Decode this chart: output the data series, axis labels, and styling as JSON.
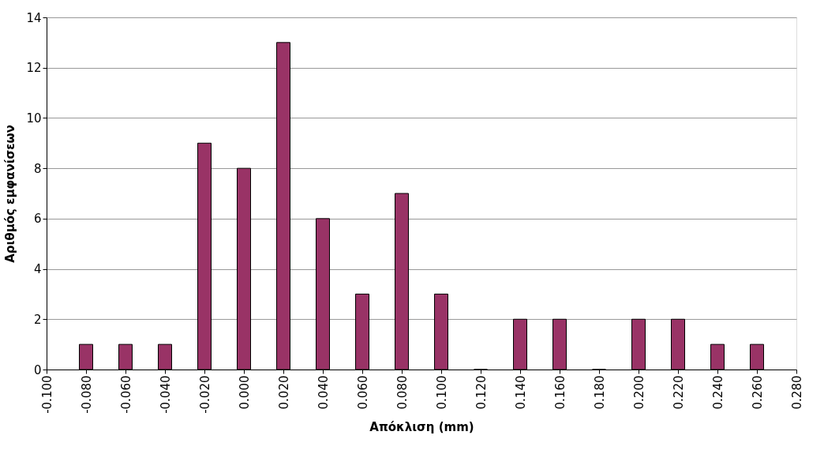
{
  "chart_data": {
    "type": "bar",
    "xlabel": "Απόκλιση (mm)",
    "ylabel": "Αριθμός εμφανίσεων",
    "x": [
      -0.08,
      -0.06,
      -0.04,
      -0.02,
      0.0,
      0.02,
      0.04,
      0.06,
      0.08,
      0.1,
      0.12,
      0.14,
      0.16,
      0.18,
      0.2,
      0.22,
      0.24,
      0.26
    ],
    "values": [
      1,
      1,
      1,
      9,
      8,
      13,
      6,
      3,
      7,
      3,
      0,
      2,
      2,
      0,
      2,
      2,
      1,
      1
    ],
    "color": "#993366",
    "xlim": [
      -0.1,
      0.28
    ],
    "xticks": [
      {
        "value": -0.1,
        "label": "-0.100"
      },
      {
        "value": -0.08,
        "label": "-0.080"
      },
      {
        "value": -0.06,
        "label": "-0.060"
      },
      {
        "value": -0.04,
        "label": "-0.040"
      },
      {
        "value": -0.02,
        "label": "-0.020"
      },
      {
        "value": 0.0,
        "label": "0.000"
      },
      {
        "value": 0.02,
        "label": "0.020"
      },
      {
        "value": 0.04,
        "label": "0.040"
      },
      {
        "value": 0.06,
        "label": "0.060"
      },
      {
        "value": 0.08,
        "label": "0.080"
      },
      {
        "value": 0.1,
        "label": "0.100"
      },
      {
        "value": 0.12,
        "label": "0.120"
      },
      {
        "value": 0.14,
        "label": "0.140"
      },
      {
        "value": 0.16,
        "label": "0.160"
      },
      {
        "value": 0.18,
        "label": "0.180"
      },
      {
        "value": 0.2,
        "label": "0.200"
      },
      {
        "value": 0.22,
        "label": "0.220"
      },
      {
        "value": 0.24,
        "label": "0.240"
      },
      {
        "value": 0.26,
        "label": "0.260"
      },
      {
        "value": 0.28,
        "label": "0.280"
      }
    ],
    "ylim": [
      0,
      14
    ],
    "yticks": [
      0,
      2,
      4,
      6,
      8,
      10,
      12,
      14
    ],
    "grid": "y"
  }
}
